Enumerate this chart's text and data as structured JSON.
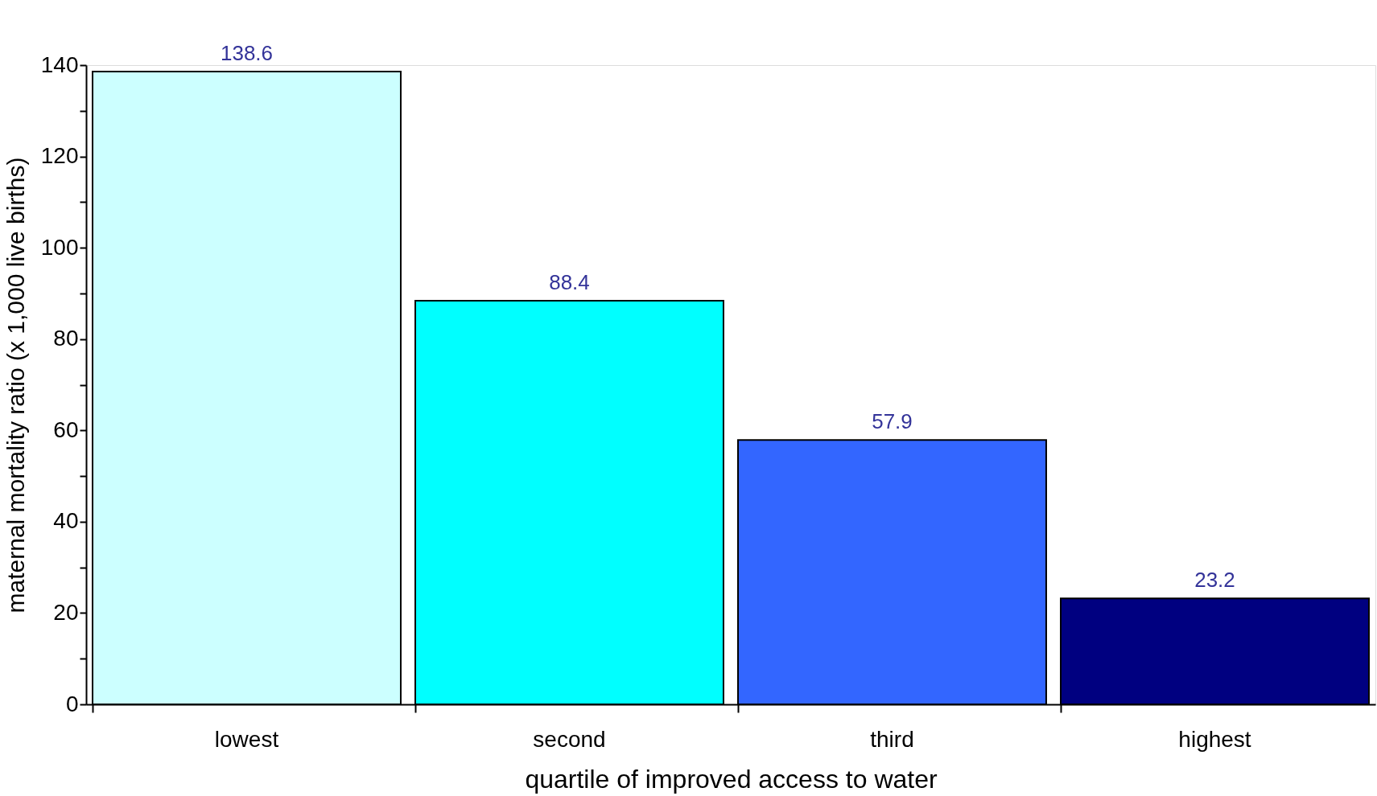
{
  "chart_data": {
    "type": "bar",
    "xlabel": "quartile of improved access to water",
    "ylabel": "maternal mortality ratio (x 1,000 live births)",
    "categories": [
      "lowest",
      "second",
      "third",
      "highest"
    ],
    "values": [
      138.6,
      88.4,
      57.9,
      23.2
    ],
    "colors": [
      "#ccffff",
      "#00ffff",
      "#3366ff",
      "#000080"
    ],
    "ylim": [
      0,
      140
    ],
    "yticks": [
      0,
      {
        "value": 10,
        "label": null
      },
      20,
      {
        "value": 30,
        "label": null
      },
      40,
      {
        "value": 50,
        "label": null
      },
      60,
      {
        "value": 70,
        "label": null
      },
      80,
      {
        "value": 90,
        "label": null
      },
      100,
      {
        "value": 110,
        "label": null
      },
      120,
      {
        "value": 130,
        "label": null
      },
      140
    ],
    "data_labels": true,
    "grid": false
  }
}
